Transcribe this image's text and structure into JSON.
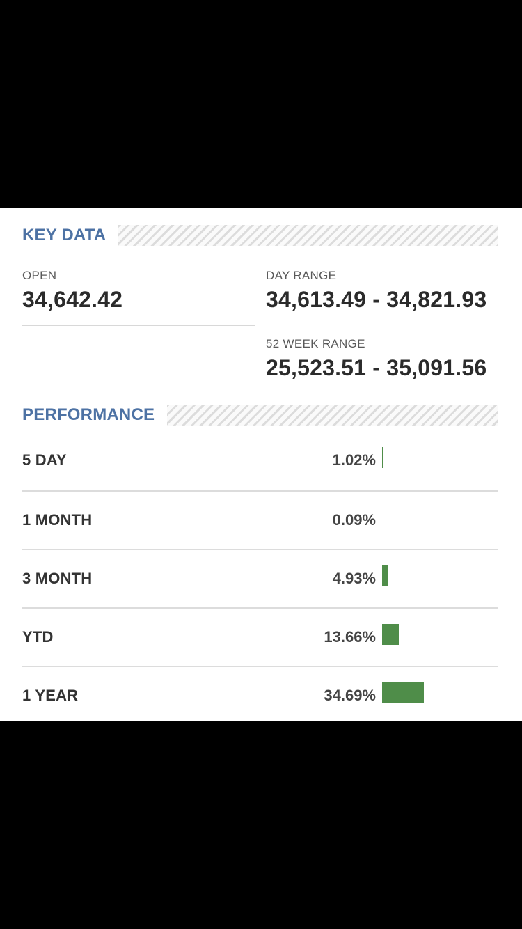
{
  "key_data": {
    "title": "KEY DATA",
    "open": {
      "label": "OPEN",
      "value": "34,642.42"
    },
    "day_range": {
      "label": "DAY RANGE",
      "value": "34,613.49 - 34,821.93"
    },
    "week52_range": {
      "label": "52 WEEK RANGE",
      "value": "25,523.51 - 35,091.56"
    }
  },
  "performance": {
    "title": "PERFORMANCE",
    "bar_color": "#4f8d49",
    "rows": [
      {
        "label": "5 DAY",
        "value": "1.02%",
        "pct": 1.02
      },
      {
        "label": "1 MONTH",
        "value": "0.09%",
        "pct": 0.09
      },
      {
        "label": "3 MONTH",
        "value": "4.93%",
        "pct": 4.93
      },
      {
        "label": "YTD",
        "value": "13.66%",
        "pct": 13.66
      },
      {
        "label": "1 YEAR",
        "value": "34.69%",
        "pct": 34.69
      }
    ]
  }
}
